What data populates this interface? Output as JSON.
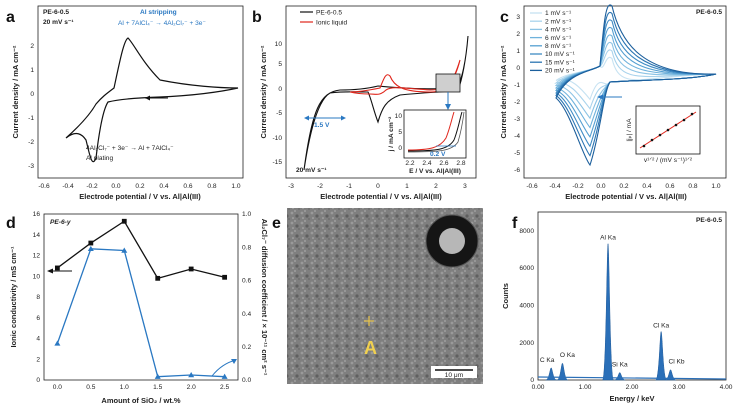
{
  "panels": {
    "a": {
      "letter": "a",
      "sample": "PE-6-0.5",
      "rate": "20 mV s⁻¹",
      "ylabel": "Current density / mA cm⁻²",
      "xlabel": "Electrode potential / V vs. Al|Al(III)",
      "xticks": [
        "-0.6",
        "-0.5",
        "-0.4",
        "-0.3",
        "-0.2",
        "-0.1",
        "0.0",
        "0.1",
        "0.2",
        "0.3",
        "0.4",
        "0.5",
        "0.6",
        "0.7",
        "0.8",
        "0.9",
        "1.0"
      ],
      "yticks": [
        "2",
        "1",
        "0",
        "-1",
        "-2",
        "-3"
      ],
      "strip_title": "Al stripping",
      "strip_eq": "Al + 7AlCl₄⁻ → 4Al₂Cl₇⁻ + 3e⁻",
      "plate_eq": "4Al₂Cl₇⁻ + 3e⁻ → Al + 7AlCl₄⁻",
      "plate_title": "Al plating"
    },
    "b": {
      "letter": "b",
      "legend": [
        "PE-6-0.5",
        "Ionic liquid"
      ],
      "rate": "20 mV s⁻¹",
      "gap": "1.5 V",
      "ylabel": "Current density / mA cm⁻²",
      "xlabel": "Electrode potential / V vs. Al|Al(III)",
      "xticks": [
        "-3",
        "-2",
        "-1",
        "0",
        "1",
        "2",
        "3"
      ],
      "yticks": [
        "10",
        "5",
        "0",
        "-5",
        "-10",
        "-15"
      ],
      "inset_ylabel": "j / mA cm⁻²",
      "inset_xlabel": "E / V vs. Al|Al(III)",
      "inset_xticks": [
        "2.2",
        "2.4",
        "2.6",
        "2.8"
      ],
      "inset_yticks": [
        "10",
        "5",
        "0"
      ],
      "inset_gap": "0.2 V"
    },
    "c": {
      "letter": "c",
      "sample": "PE-6-0.5",
      "legend": [
        "1 mV s⁻¹",
        "2 mV s⁻¹",
        "4 mV s⁻¹",
        "6 mV s⁻¹",
        "8 mV s⁻¹",
        "10 mV s⁻¹",
        "15 mV s⁻¹",
        "20 mV s⁻¹"
      ],
      "ylabel": "Current density / mA cm⁻²",
      "xlabel": "Electrode potential / V vs. Al|Al(III)",
      "xticks": [
        "-0.6",
        "-0.4",
        "-0.2",
        "0.0",
        "0.2",
        "0.4",
        "0.6",
        "0.8",
        "1.0"
      ],
      "yticks": [
        "3",
        "2",
        "1",
        "0",
        "-1",
        "-2",
        "-3",
        "-4",
        "-5",
        "-6"
      ],
      "inset_ylabel": "|jₚ| / mA",
      "inset_xlabel": "v¹ᐟ² / (mV s⁻¹)¹ᐟ²",
      "colors": [
        "#c6e2f2",
        "#a9d3ec",
        "#8cc3e4",
        "#6fb2dc",
        "#559fd1",
        "#3f8bc4",
        "#2b75b2",
        "#1c5f9c"
      ]
    },
    "d": {
      "letter": "d",
      "tag": "PE-6-y",
      "ylabel": "Ionic conductivity / mS cm⁻¹",
      "y2label": "Al₂Cl₇⁻ diffusion coefficient / × 10⁻¹¹ cm² s⁻¹",
      "xlabel": "Amount of SiO₂ / wt.%",
      "xticks": [
        "0.0",
        "0.5",
        "1.0",
        "1.5",
        "2.0",
        "2.5"
      ],
      "yticks": [
        "16",
        "14",
        "12",
        "10",
        "8",
        "6",
        "4",
        "2",
        "0"
      ],
      "y2ticks": [
        "1.0",
        "0.8",
        "0.6",
        "0.4",
        "0.2",
        "0.0"
      ]
    },
    "e": {
      "letter": "e",
      "marker": "A",
      "scale": "10 μm"
    },
    "f": {
      "letter": "f",
      "sample": "PE-6-0.5",
      "ylabel": "Counts",
      "xlabel": "Energy / keV",
      "xticks": [
        "0.00",
        "1.00",
        "2.00",
        "3.00",
        "4.00"
      ],
      "yticks": [
        "8000",
        "6000",
        "4000",
        "2000",
        "0"
      ],
      "peaks": [
        "Al Ka",
        "C Ka",
        "O Ka",
        "Si Ka",
        "Cl Ka",
        "Cl Kb"
      ]
    }
  },
  "chart_data": [
    {
      "type": "line",
      "panel": "d",
      "x": [
        0.0,
        0.5,
        1.0,
        1.5,
        2.0,
        2.5
      ],
      "series": [
        {
          "values": [
            10.8,
            13.2,
            15.3,
            9.8,
            10.7,
            9.9
          ],
          "axis": "left",
          "color": "#111111"
        },
        {
          "values": [
            0.22,
            0.79,
            0.78,
            0.02,
            0.03,
            0.02
          ],
          "axis": "right",
          "color": "#2a78c2"
        }
      ],
      "xlim": [
        -0.2,
        2.7
      ],
      "ylim": [
        0,
        16
      ],
      "y2lim": [
        0,
        1.0
      ]
    },
    {
      "type": "bar",
      "panel": "f",
      "x": [
        0.28,
        0.52,
        1.49,
        1.74,
        2.62,
        2.82
      ],
      "values": [
        650,
        900,
        7300,
        400,
        2600,
        550
      ],
      "xlim": [
        0,
        4
      ],
      "ylim": [
        0,
        9000
      ]
    }
  ]
}
